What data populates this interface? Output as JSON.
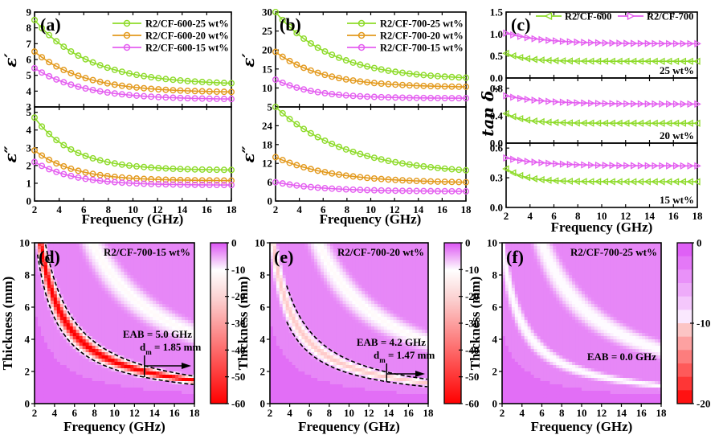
{
  "colors": {
    "green": "#8edb2a",
    "orange": "#e39a1e",
    "magenta": "#e45ff0",
    "cmap_low": "#ff0000",
    "cmap_mid": "#ffffff",
    "cmap_high": "#dd55f5"
  },
  "chart_data": [
    {
      "id": "a-top",
      "panel": "(a)",
      "type": "line",
      "xlabel": "Frequency (GHz)",
      "ylabel": "ε′",
      "xlim": [
        2,
        18
      ],
      "ylim": [
        3,
        9
      ],
      "yticks": [
        "3",
        "4",
        "5",
        "6",
        "7",
        "8",
        "9"
      ],
      "xticks": [],
      "legend": "top-right",
      "marker": "circle",
      "x": [
        2,
        18
      ],
      "series": [
        {
          "name": "R2/CF-600-25 wt%",
          "color": "green",
          "start": 8.5,
          "end": 4.5,
          "k": 0.28
        },
        {
          "name": "R2/CF-600-20 wt%",
          "color": "orange",
          "start": 6.5,
          "end": 3.95,
          "k": 0.25
        },
        {
          "name": "R2/CF-600-15 wt%",
          "color": "magenta",
          "start": 5.45,
          "end": 3.5,
          "k": 0.25
        }
      ]
    },
    {
      "id": "a-bottom",
      "type": "line",
      "xlabel": "Frequency (GHz)",
      "ylabel": "ε″",
      "xlim": [
        2,
        18
      ],
      "ylim": [
        0,
        5.3
      ],
      "yticks": [
        "0",
        "1",
        "2",
        "3",
        "4",
        "5"
      ],
      "xticks": [
        "2",
        "4",
        "6",
        "8",
        "10",
        "12",
        "14",
        "16",
        "18"
      ],
      "marker": "circle",
      "series": [
        {
          "name": "R2/CF-600-25 wt%",
          "color": "green",
          "start": 4.7,
          "end": 1.75,
          "k": 0.2
        },
        {
          "name": "R2/CF-600-20 wt%",
          "color": "orange",
          "start": 2.85,
          "end": 1.15,
          "k": 0.2
        },
        {
          "name": "R2/CF-600-15 wt%",
          "color": "magenta",
          "start": 2.2,
          "end": 0.9,
          "k": 0.2
        }
      ]
    },
    {
      "id": "b-top",
      "panel": "(b)",
      "type": "line",
      "xlabel": "Frequency (GHz)",
      "ylabel": "ε′",
      "xlim": [
        2,
        18
      ],
      "ylim": [
        5,
        30
      ],
      "yticks": [
        "5",
        "10",
        "15",
        "20",
        "25",
        "30"
      ],
      "xticks": [],
      "legend": "top-right",
      "marker": "circle",
      "series": [
        {
          "name": "R2/CF-700-25 wt%",
          "color": "green",
          "start": 30,
          "end": 12.7,
          "k": 0.3
        },
        {
          "name": "R2/CF-700-20 wt%",
          "color": "orange",
          "start": 19.5,
          "end": 10.3,
          "k": 0.25
        },
        {
          "name": "R2/CF-700-15 wt%",
          "color": "magenta",
          "start": 12.2,
          "end": 7.3,
          "k": 0.2
        }
      ]
    },
    {
      "id": "b-bottom",
      "type": "line",
      "xlabel": "Frequency (GHz)",
      "ylabel": "ε″",
      "xlim": [
        2,
        18
      ],
      "ylim": [
        0,
        30
      ],
      "yticks": [
        "0",
        "6",
        "12",
        "18",
        "24"
      ],
      "xticks": [
        "2",
        "4",
        "6",
        "8",
        "10",
        "12",
        "14",
        "16",
        "18"
      ],
      "marker": "circle",
      "series": [
        {
          "name": "R2/CF-700-25 wt%",
          "color": "green",
          "start": 30,
          "end": 9.8,
          "k": 0.38
        },
        {
          "name": "R2/CF-700-20 wt%",
          "color": "orange",
          "start": 14,
          "end": 6,
          "k": 0.3
        },
        {
          "name": "R2/CF-700-15 wt%",
          "color": "magenta",
          "start": 6,
          "end": 3.1,
          "k": 0.25
        }
      ]
    },
    {
      "id": "c-25",
      "panel": "(c)",
      "type": "line",
      "ylabel": "tan δε",
      "xlim": [
        2,
        18
      ],
      "ylim": [
        0,
        1.5
      ],
      "yticks": [
        "0.0",
        "0.5",
        "1.0",
        "1.5"
      ],
      "xticks": [],
      "legend": "top",
      "annotation": "25 wt%",
      "series": [
        {
          "name": "R2/CF-600",
          "color": "green",
          "marker": "left-triangle",
          "start": 0.56,
          "end": 0.38,
          "k": 0.1
        },
        {
          "name": "R2/CF-700",
          "color": "magenta",
          "marker": "right-triangle",
          "start": 1.02,
          "end": 0.78,
          "k": 0.2
        }
      ]
    },
    {
      "id": "c-20",
      "type": "line",
      "xlim": [
        2,
        18
      ],
      "ylim": [
        0,
        0.95
      ],
      "yticks": [
        "0.0",
        "0.4",
        "0.8"
      ],
      "xticks": [],
      "annotation": "20 wt%",
      "series": [
        {
          "name": "R2/CF-600",
          "color": "green",
          "marker": "left-triangle",
          "start": 0.43,
          "end": 0.29,
          "k": 0.1
        },
        {
          "name": "R2/CF-700",
          "color": "magenta",
          "marker": "right-triangle",
          "start": 0.69,
          "end": 0.57,
          "k": 0.2
        }
      ]
    },
    {
      "id": "c-15",
      "type": "line",
      "xlabel": "Frequency (GHz)",
      "xlim": [
        2,
        18
      ],
      "ylim": [
        0,
        0.65
      ],
      "yticks": [
        "0.0",
        "0.3",
        "0.6"
      ],
      "xticks": [
        "2",
        "4",
        "6",
        "8",
        "10",
        "12",
        "14",
        "16",
        "18"
      ],
      "annotation": "15 wt%",
      "series": [
        {
          "name": "R2/CF-600",
          "color": "green",
          "marker": "left-triangle",
          "start": 0.39,
          "end": 0.26,
          "k": 0.1
        },
        {
          "name": "R2/CF-700",
          "color": "magenta",
          "marker": "right-triangle",
          "start": 0.5,
          "end": 0.42,
          "k": 0.2
        }
      ]
    },
    {
      "id": "d",
      "panel": "(d)",
      "type": "heatmap",
      "title": "R2/CF-700-15 wt%",
      "xlabel": "Frequency (GHz)",
      "ylabel": "Thickness (mm)",
      "xlim": [
        2,
        18
      ],
      "ylim": [
        0,
        10
      ],
      "xticks": [
        "2",
        "4",
        "6",
        "8",
        "10",
        "12",
        "14",
        "16",
        "18"
      ],
      "yticks": [
        "0",
        "2",
        "4",
        "6",
        "8",
        "10"
      ],
      "colorbar": {
        "range": [
          -60,
          0
        ],
        "ticks": [
          "0",
          "-10",
          "-20",
          "-30",
          "-40",
          "-50",
          "-60"
        ]
      },
      "min_rl": -60,
      "match_constant": 26,
      "eab_band": [
        13,
        18
      ],
      "annotations": [
        "EAB = 5.0 GHz",
        "d",
        "m",
        "= 1.85 mm"
      ]
    },
    {
      "id": "e",
      "panel": "(e)",
      "type": "heatmap",
      "title": "R2/CF-700-20 wt%",
      "xlabel": "Frequency (GHz)",
      "ylabel": "Thickness (mm)",
      "xlim": [
        2,
        18
      ],
      "ylim": [
        0,
        10
      ],
      "xticks": [
        "2",
        "4",
        "6",
        "8",
        "10",
        "12",
        "14",
        "16",
        "18"
      ],
      "yticks": [
        "0",
        "2",
        "4",
        "6",
        "8",
        "10"
      ],
      "colorbar": {
        "range": [
          -60,
          0
        ],
        "ticks": [
          "0",
          "-10",
          "-20",
          "-30",
          "-40",
          "-50",
          "-60"
        ]
      },
      "min_rl": -18,
      "match_constant": 23,
      "eab_band": [
        13.8,
        18
      ],
      "annotations": [
        "EAB = 4.2 GHz",
        "d",
        "m",
        "= 1.47 mm"
      ]
    },
    {
      "id": "f",
      "panel": "(f)",
      "type": "heatmap",
      "title": "R2/CF-700-25 wt%",
      "xlabel": "Frequency (GHz)",
      "ylabel": "Thickness (mm)",
      "xlim": [
        2,
        18
      ],
      "ylim": [
        0,
        10
      ],
      "xticks": [
        "2",
        "4",
        "6",
        "8",
        "10",
        "12",
        "14",
        "16",
        "18"
      ],
      "yticks": [
        "0",
        "2",
        "4",
        "6",
        "8",
        "10"
      ],
      "colorbar": {
        "range": [
          -20,
          0
        ],
        "ticks": [
          "0",
          "-10",
          "-20"
        ]
      },
      "min_rl": -8,
      "match_constant": 20,
      "eab_band": null,
      "annotations": [
        "EAB = 0.0 GHz"
      ]
    }
  ]
}
